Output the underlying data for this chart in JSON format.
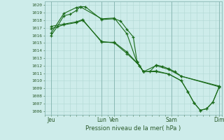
{
  "title": "Pression niveau de la mer( hPa )",
  "ylabel_values": [
    1006,
    1007,
    1008,
    1009,
    1010,
    1011,
    1012,
    1013,
    1014,
    1015,
    1016,
    1017,
    1018,
    1019,
    1020
  ],
  "ylim": [
    1005.5,
    1020.5
  ],
  "xlim": [
    0.0,
    14.0
  ],
  "xtick_positions": [
    0.5,
    4.5,
    5.5,
    10.0,
    13.8
  ],
  "xtick_labels": [
    "Jeu",
    "Lun",
    "Ven",
    "Sam",
    "Dim"
  ],
  "vlines_dark": [
    0.5,
    4.5,
    5.5,
    10.0,
    13.8
  ],
  "bg_color": "#cdecea",
  "grid_color": "#b2d8d4",
  "line_color": "#1a6b1a",
  "series1": [
    [
      0.5,
      1016.0
    ],
    [
      1.0,
      1017.2
    ],
    [
      1.5,
      1018.6
    ],
    [
      2.0,
      1018.8
    ],
    [
      2.5,
      1019.3
    ],
    [
      2.8,
      1019.8
    ],
    [
      3.2,
      1019.8
    ],
    [
      4.5,
      1018.1
    ],
    [
      5.5,
      1018.2
    ],
    [
      6.0,
      1017.9
    ],
    [
      6.5,
      1016.8
    ],
    [
      7.0,
      1015.8
    ],
    [
      7.3,
      1012.5
    ],
    [
      7.8,
      1011.2
    ],
    [
      8.3,
      1011.2
    ],
    [
      8.8,
      1012.1
    ],
    [
      9.3,
      1011.9
    ],
    [
      9.8,
      1011.6
    ],
    [
      10.3,
      1011.2
    ],
    [
      10.8,
      1010.6
    ],
    [
      13.8,
      1009.2
    ]
  ],
  "series2": [
    [
      0.5,
      1016.3
    ],
    [
      1.5,
      1018.9
    ],
    [
      2.5,
      1019.7
    ],
    [
      2.8,
      1019.8
    ],
    [
      4.5,
      1018.2
    ],
    [
      5.5,
      1018.3
    ],
    [
      6.5,
      1016.2
    ],
    [
      7.3,
      1012.4
    ],
    [
      7.8,
      1011.2
    ],
    [
      8.8,
      1012.0
    ],
    [
      9.8,
      1011.5
    ],
    [
      10.8,
      1010.6
    ],
    [
      13.8,
      1009.3
    ]
  ],
  "series3": [
    [
      0.5,
      1017.2
    ],
    [
      1.5,
      1017.5
    ],
    [
      2.5,
      1017.8
    ],
    [
      3.0,
      1018.1
    ],
    [
      4.5,
      1015.1
    ],
    [
      5.5,
      1015.1
    ],
    [
      6.5,
      1013.8
    ],
    [
      7.5,
      1012.0
    ],
    [
      7.8,
      1011.2
    ],
    [
      8.8,
      1011.3
    ],
    [
      9.8,
      1010.9
    ],
    [
      10.8,
      1010.0
    ],
    [
      11.3,
      1008.6
    ],
    [
      11.8,
      1007.1
    ],
    [
      12.3,
      1006.1
    ],
    [
      12.8,
      1006.3
    ],
    [
      13.3,
      1007.2
    ],
    [
      13.8,
      1009.2
    ]
  ],
  "series4": [
    [
      0.5,
      1016.9
    ],
    [
      1.5,
      1017.4
    ],
    [
      2.5,
      1017.7
    ],
    [
      3.0,
      1018.0
    ],
    [
      4.5,
      1015.2
    ],
    [
      5.5,
      1015.0
    ],
    [
      6.5,
      1013.6
    ],
    [
      7.5,
      1012.0
    ],
    [
      7.8,
      1011.2
    ],
    [
      8.8,
      1011.2
    ],
    [
      9.8,
      1010.9
    ],
    [
      10.8,
      1010.0
    ],
    [
      11.3,
      1008.6
    ],
    [
      11.8,
      1007.1
    ],
    [
      12.3,
      1006.1
    ],
    [
      12.8,
      1006.3
    ],
    [
      13.3,
      1007.2
    ],
    [
      13.8,
      1009.2
    ]
  ]
}
